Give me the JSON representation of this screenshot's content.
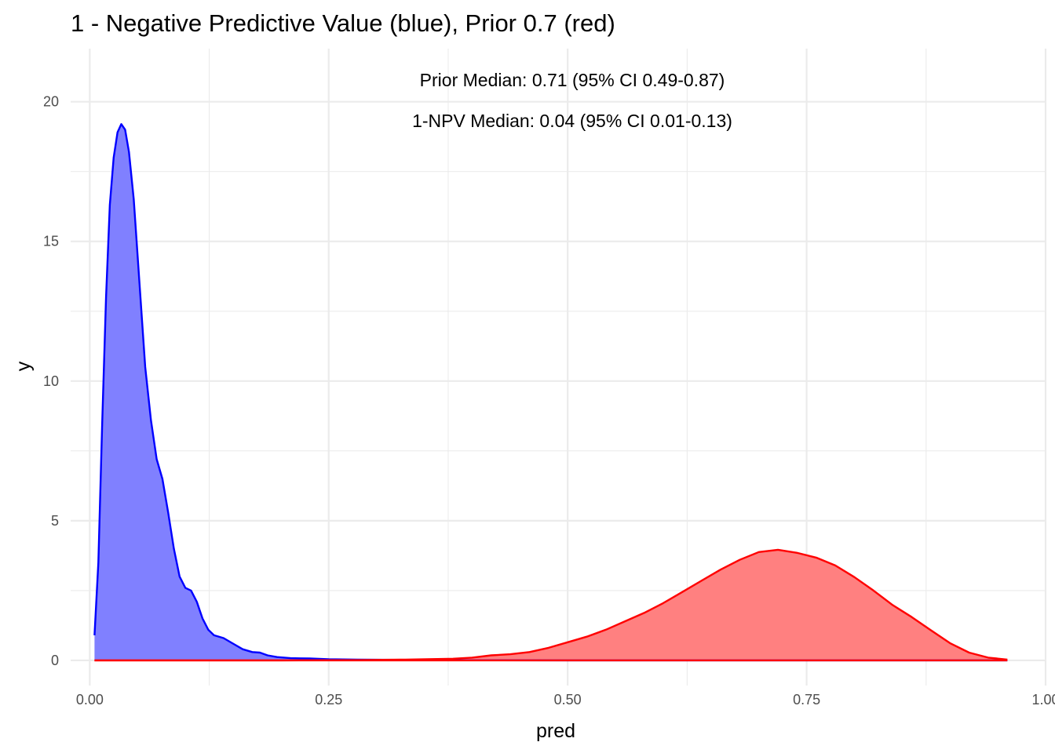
{
  "chart_data": {
    "type": "area",
    "title": "1 - Negative Predictive Value (blue), Prior 0.7 (red)",
    "xlabel": "pred",
    "ylabel": "y",
    "xlim": [
      -0.02,
      1.0
    ],
    "ylim": [
      -0.9,
      21.9
    ],
    "x_ticks": [
      0.0,
      0.25,
      0.5,
      0.75,
      1.0
    ],
    "x_tick_labels": [
      "0.00",
      "0.25",
      "0.50",
      "0.75",
      "1.00"
    ],
    "y_ticks": [
      0,
      5,
      10,
      15,
      20
    ],
    "y_tick_labels": [
      "0",
      "5",
      "10",
      "15",
      "20"
    ],
    "grid": true,
    "annotations": [
      "Prior Median: 0.71 (95% CI 0.49-0.87)",
      "1-NPV Median: 0.04 (95% CI 0.01-0.13)"
    ],
    "series": [
      {
        "color_line": "#0000ff",
        "color_fill": "#8080ff",
        "points": [
          [
            0.005,
            0.9
          ],
          [
            0.009,
            3.5
          ],
          [
            0.013,
            8.5
          ],
          [
            0.017,
            13.0
          ],
          [
            0.021,
            16.3
          ],
          [
            0.025,
            18.0
          ],
          [
            0.029,
            18.9
          ],
          [
            0.033,
            19.2
          ],
          [
            0.037,
            19.0
          ],
          [
            0.041,
            18.2
          ],
          [
            0.046,
            16.5
          ],
          [
            0.052,
            13.5
          ],
          [
            0.058,
            10.5
          ],
          [
            0.064,
            8.6
          ],
          [
            0.07,
            7.2
          ],
          [
            0.076,
            6.5
          ],
          [
            0.082,
            5.3
          ],
          [
            0.088,
            4.0
          ],
          [
            0.094,
            3.0
          ],
          [
            0.1,
            2.6
          ],
          [
            0.106,
            2.5
          ],
          [
            0.112,
            2.1
          ],
          [
            0.118,
            1.5
          ],
          [
            0.124,
            1.1
          ],
          [
            0.13,
            0.9
          ],
          [
            0.14,
            0.8
          ],
          [
            0.15,
            0.6
          ],
          [
            0.16,
            0.4
          ],
          [
            0.17,
            0.3
          ],
          [
            0.178,
            0.28
          ],
          [
            0.186,
            0.18
          ],
          [
            0.196,
            0.12
          ],
          [
            0.21,
            0.08
          ],
          [
            0.23,
            0.07
          ],
          [
            0.25,
            0.04
          ],
          [
            0.28,
            0.03
          ],
          [
            0.32,
            0.02
          ],
          [
            0.36,
            0.01
          ],
          [
            0.4,
            0.005
          ],
          [
            0.5,
            0.002
          ],
          [
            0.6,
            0.0
          ],
          [
            0.8,
            0.0
          ],
          [
            0.96,
            0.0
          ]
        ]
      },
      {
        "color_line": "#ff0000",
        "color_fill": "#ff8080",
        "points": [
          [
            0.005,
            0.0
          ],
          [
            0.2,
            0.0
          ],
          [
            0.28,
            0.01
          ],
          [
            0.33,
            0.03
          ],
          [
            0.38,
            0.06
          ],
          [
            0.4,
            0.1
          ],
          [
            0.42,
            0.18
          ],
          [
            0.44,
            0.22
          ],
          [
            0.46,
            0.3
          ],
          [
            0.48,
            0.45
          ],
          [
            0.5,
            0.65
          ],
          [
            0.52,
            0.85
          ],
          [
            0.54,
            1.1
          ],
          [
            0.56,
            1.4
          ],
          [
            0.58,
            1.7
          ],
          [
            0.6,
            2.05
          ],
          [
            0.62,
            2.45
          ],
          [
            0.64,
            2.85
          ],
          [
            0.66,
            3.25
          ],
          [
            0.68,
            3.6
          ],
          [
            0.7,
            3.88
          ],
          [
            0.72,
            3.96
          ],
          [
            0.74,
            3.85
          ],
          [
            0.76,
            3.68
          ],
          [
            0.78,
            3.4
          ],
          [
            0.8,
            2.98
          ],
          [
            0.82,
            2.5
          ],
          [
            0.84,
            1.98
          ],
          [
            0.86,
            1.55
          ],
          [
            0.88,
            1.08
          ],
          [
            0.9,
            0.62
          ],
          [
            0.92,
            0.28
          ],
          [
            0.94,
            0.1
          ],
          [
            0.96,
            0.03
          ]
        ]
      }
    ]
  }
}
